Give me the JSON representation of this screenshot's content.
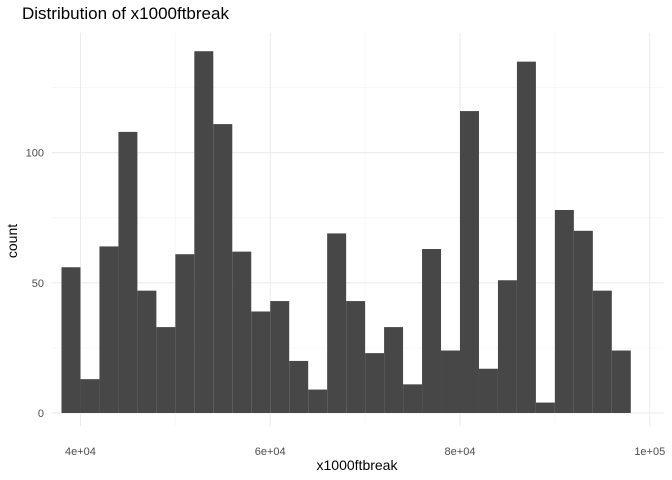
{
  "chart_data": {
    "type": "bar",
    "title": "Distribution of x1000ftbreak",
    "xlabel": "x1000ftbreak",
    "ylabel": "count",
    "xlim": [
      37000,
      101500
    ],
    "ylim": [
      -5,
      146
    ],
    "x_ticks": [
      40000,
      60000,
      80000,
      100000
    ],
    "x_tick_labels": [
      "4e+04",
      "6e+04",
      "8e+04",
      "1e+05"
    ],
    "y_ticks": [
      0,
      50,
      100
    ],
    "y_tick_labels": [
      "0",
      "50",
      "100"
    ],
    "bin_start": 38000,
    "bin_width": 2000,
    "values": [
      56,
      13,
      64,
      108,
      47,
      33,
      61,
      139,
      111,
      62,
      39,
      43,
      20,
      9,
      69,
      43,
      23,
      33,
      11,
      63,
      24,
      116,
      17,
      51,
      135,
      4,
      78,
      70,
      47,
      24
    ],
    "bar_color": "#474747",
    "grid": true
  }
}
